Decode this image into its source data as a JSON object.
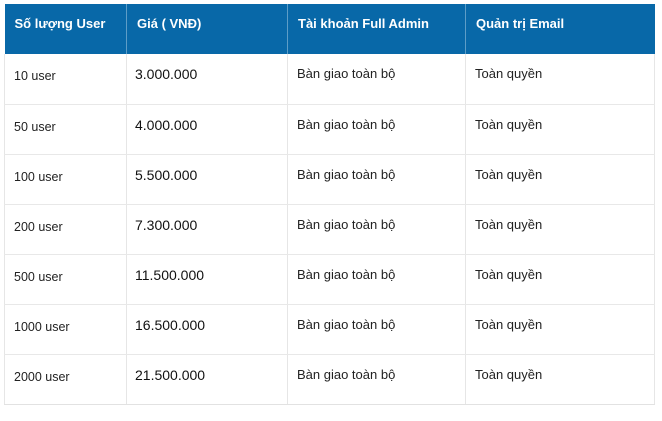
{
  "table": {
    "headers": [
      "Số lượng User",
      "Giá ( VNĐ)",
      "Tài khoản Full Admin",
      "Quản trị Email"
    ],
    "rows": [
      [
        "10 user",
        "3.000.000",
        "Bàn giao toàn bộ",
        "Toàn quyền"
      ],
      [
        "50 user",
        "4.000.000",
        "Bàn giao toàn bộ",
        "Toàn quyền"
      ],
      [
        "100 user",
        "5.500.000",
        "Bàn giao toàn bộ",
        "Toàn quyền"
      ],
      [
        "200 user",
        "7.300.000",
        "Bàn giao toàn bộ",
        "Toàn quyền"
      ],
      [
        "500 user",
        "11.500.000",
        "Bàn giao toàn bộ",
        "Toàn quyền"
      ],
      [
        "1000 user",
        "16.500.000",
        "Bàn giao toàn bộ",
        "Toàn quyền"
      ],
      [
        "2000 user",
        "21.500.000",
        "Bàn giao toàn bộ",
        "Toàn quyền"
      ]
    ]
  },
  "colors": {
    "header_bg": "#0868a8",
    "header_text": "#ffffff",
    "grid": "#e6e6e6"
  }
}
